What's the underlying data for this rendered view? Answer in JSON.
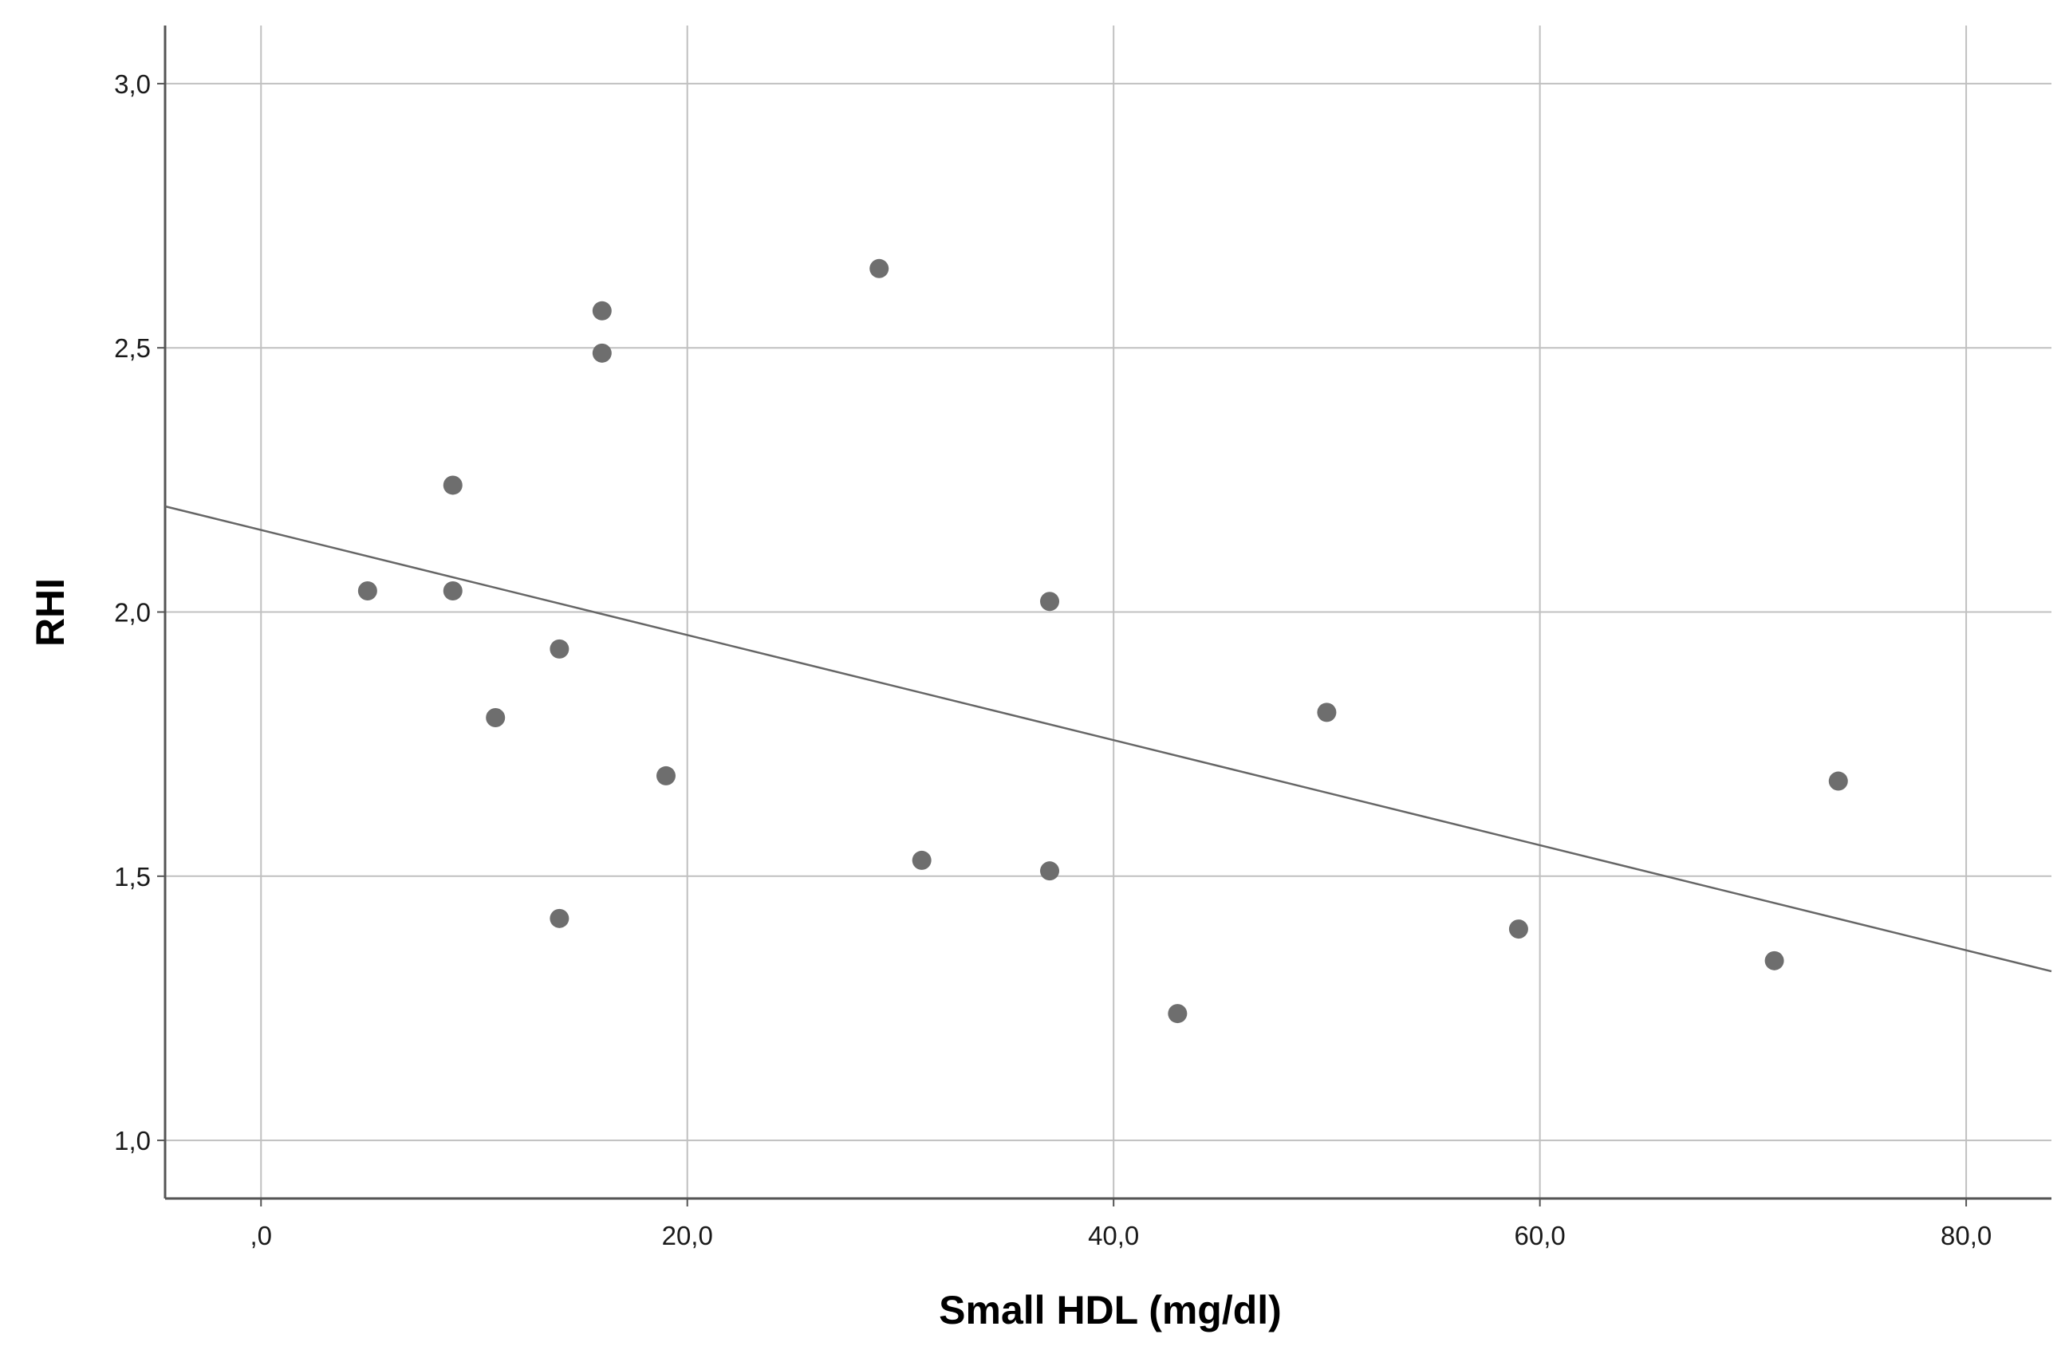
{
  "chart_data": {
    "type": "scatter",
    "title": "",
    "xlabel": "Small HDL (mg/dl)",
    "ylabel": "RHI",
    "xlim": [
      -4.5,
      84
    ],
    "ylim": [
      0.89,
      3.11
    ],
    "x_ticks": [
      {
        "value": 0,
        "label": ",0"
      },
      {
        "value": 20,
        "label": "20,0"
      },
      {
        "value": 40,
        "label": "40,0"
      },
      {
        "value": 60,
        "label": "60,0"
      },
      {
        "value": 80,
        "label": "80,0"
      }
    ],
    "y_ticks": [
      {
        "value": 1.0,
        "label": "1,0"
      },
      {
        "value": 1.5,
        "label": "1,5"
      },
      {
        "value": 2.0,
        "label": "2,0"
      },
      {
        "value": 2.5,
        "label": "2,5"
      },
      {
        "value": 3.0,
        "label": "3,0"
      }
    ],
    "grid": true,
    "legend": "none",
    "points": [
      {
        "x": 5,
        "y": 2.04
      },
      {
        "x": 9,
        "y": 2.24
      },
      {
        "x": 9,
        "y": 2.04
      },
      {
        "x": 11,
        "y": 1.8
      },
      {
        "x": 14,
        "y": 1.93
      },
      {
        "x": 14,
        "y": 1.42
      },
      {
        "x": 16,
        "y": 2.57
      },
      {
        "x": 16,
        "y": 2.49
      },
      {
        "x": 19,
        "y": 1.69
      },
      {
        "x": 29,
        "y": 2.65
      },
      {
        "x": 31,
        "y": 1.53
      },
      {
        "x": 37,
        "y": 2.02
      },
      {
        "x": 37,
        "y": 1.51
      },
      {
        "x": 43,
        "y": 1.24
      },
      {
        "x": 50,
        "y": 1.81
      },
      {
        "x": 59,
        "y": 1.4
      },
      {
        "x": 71,
        "y": 1.34
      },
      {
        "x": 74,
        "y": 1.68
      }
    ],
    "fit_line": {
      "type": "linear",
      "x": [
        -4.5,
        84
      ],
      "y": [
        2.2,
        1.32
      ]
    },
    "colors": {
      "points": "#6e6e6e",
      "grid": "#c0c0c0",
      "axis": "#555555",
      "fit": "#666666"
    }
  }
}
